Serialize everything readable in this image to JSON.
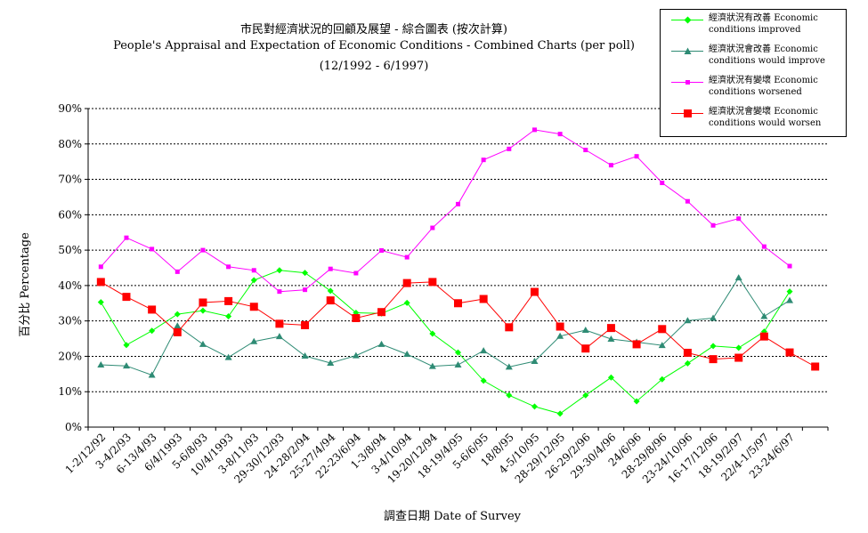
{
  "chart_data": {
    "type": "line",
    "title_zh": "市民對經濟狀況的回顧及展望 - 綜合圖表 (按次計算)",
    "title_en": "People's Appraisal and Expectation of Economic Conditions - Combined Charts  (per poll)",
    "subtitle": "(12/1992 - 6/1997)",
    "xlabel": "調查日期 Date of Survey",
    "ylabel": "百分比 Percentage",
    "ylim": [
      0,
      90
    ],
    "yticks": [
      "0%",
      "10%",
      "20%",
      "30%",
      "40%",
      "50%",
      "60%",
      "70%",
      "80%",
      "90%"
    ],
    "grid": true,
    "legend_position": "top-right",
    "categories": [
      "1-2/12/92",
      "3-4/2/93",
      "6-13/4/93",
      "6/4/1993",
      "5-6/8/93",
      "10/4/1993",
      "3-8/11/93",
      "29-30/12/93",
      "24-28/2/94",
      "25-27/4/94",
      "22-23/6/94",
      "1-3/8/94",
      "3-4/10/94",
      "19-20/12/94",
      "18-19/4/95",
      "5-6/6/95",
      "18/8/95",
      "4-5/10/95",
      "28-29/12/95",
      "26-29/2/96",
      "29-30/4/96",
      "24/6/96",
      "28-29/8/96",
      "23-24/10/96",
      "16-17/12/96",
      "18-19/2/97",
      "22/4-1/5/97",
      "23-24/6/97",
      ""
    ],
    "x_positions": [
      0,
      1,
      2,
      3,
      4,
      5,
      6,
      7,
      8,
      9,
      10,
      11,
      12,
      13,
      14,
      15,
      16,
      17,
      18,
      19,
      20,
      21,
      22,
      23,
      24,
      25,
      26,
      27,
      28
    ],
    "series": [
      {
        "name_zh": "經濟狀況有改善",
        "name_en1": "Economic",
        "name_en2": "conditions improved",
        "color": "#00ff00",
        "marker": "diamond",
        "values": [
          35.3,
          23.2,
          27.2,
          31.9,
          32.9,
          31.3,
          41.5,
          44.3,
          43.6,
          38.5,
          32.3,
          32.1,
          35.1,
          26.4,
          21.1,
          13.1,
          9.0,
          5.8,
          3.8,
          9.0,
          14.0,
          7.3,
          13.5,
          18.0,
          22.9,
          22.4,
          27.0,
          38.3,
          null
        ]
      },
      {
        "name_zh": "經濟狀況會改善",
        "name_en1": "Economic",
        "name_en2": "conditions would improve",
        "color": "#2e8b74",
        "marker": "triangle",
        "values": [
          17.6,
          17.3,
          14.7,
          28.6,
          23.4,
          19.7,
          24.2,
          25.6,
          20.1,
          18.1,
          20.2,
          23.4,
          20.6,
          17.2,
          17.6,
          21.6,
          17.0,
          18.6,
          25.7,
          27.4,
          24.9,
          24.0,
          23.1,
          30.1,
          30.8,
          42.2,
          31.3,
          35.8,
          null
        ]
      },
      {
        "name_zh": "經濟狀況有變壞",
        "name_en1": "Economic",
        "name_en2": "conditions worsened",
        "color": "#ff00ff",
        "marker": "square-small",
        "values": [
          45.3,
          53.5,
          50.3,
          43.9,
          50.0,
          45.3,
          44.3,
          38.3,
          38.8,
          44.7,
          43.5,
          49.9,
          48.0,
          56.3,
          63.0,
          75.5,
          78.6,
          84.0,
          82.8,
          78.3,
          74.0,
          76.5,
          69.0,
          63.8,
          57.0,
          58.9,
          51.0,
          45.5,
          null
        ]
      },
      {
        "name_zh": "經濟狀況會變壞",
        "name_en1": "Economic",
        "name_en2": "conditions would worsen",
        "color": "#ff0000",
        "marker": "square",
        "values": [
          41.0,
          36.8,
          33.2,
          26.8,
          35.2,
          35.6,
          34.0,
          29.2,
          28.8,
          35.8,
          30.8,
          32.5,
          40.7,
          41.0,
          35.0,
          36.2,
          28.2,
          38.2,
          28.4,
          22.2,
          28.0,
          23.4,
          27.7,
          21.0,
          19.2,
          19.6,
          25.6,
          21.1,
          17.1
        ]
      }
    ]
  }
}
